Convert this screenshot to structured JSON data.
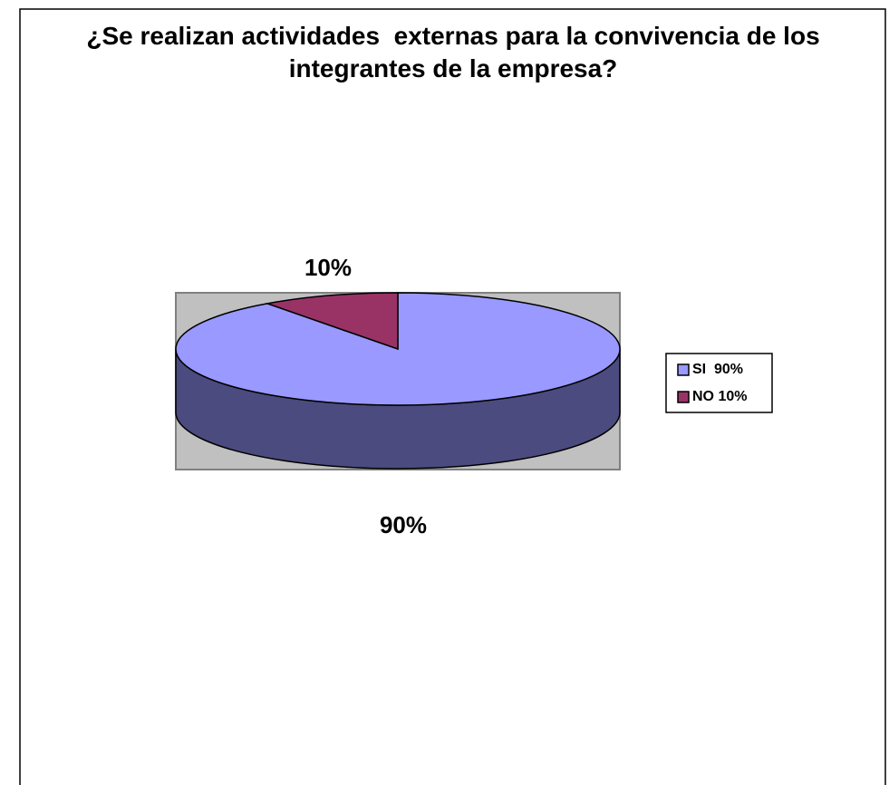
{
  "chart_data": {
    "type": "pie",
    "title": "¿Se realizan actividades  externas para la convivencia de los integrantes de la empresa?",
    "categories": [
      "SI  90%",
      "NO 10%"
    ],
    "values": [
      90,
      10
    ],
    "value_labels": [
      "90%",
      "10%"
    ],
    "colors": [
      "#9999ff",
      "#993366"
    ],
    "side_colors": [
      "#4b4b7f",
      "#5a1e3c"
    ],
    "legend": "right"
  }
}
